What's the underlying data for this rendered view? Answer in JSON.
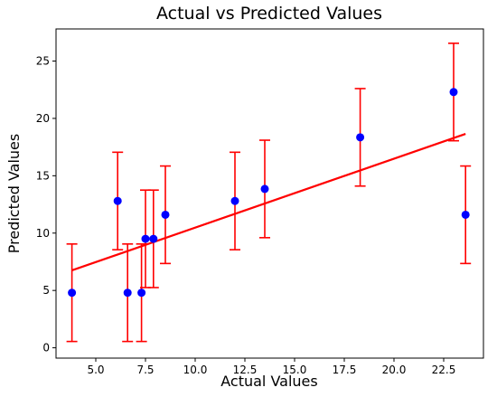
{
  "chart_data": {
    "type": "scatter",
    "title": "Actual vs Predicted Values",
    "xlabel": "Actual Values",
    "ylabel": "Predicted Values",
    "xlim": [
      3.0,
      24.5
    ],
    "ylim": [
      -0.9,
      27.8
    ],
    "x_ticks": [
      5.0,
      7.5,
      10.0,
      12.5,
      15.0,
      17.5,
      20.0,
      22.5
    ],
    "x_tick_labels": [
      "5.0",
      "7.5",
      "10.0",
      "12.5",
      "15.0",
      "17.5",
      "20.0",
      "22.5"
    ],
    "y_ticks": [
      0,
      5,
      10,
      15,
      20,
      25
    ],
    "y_tick_labels": [
      "0",
      "5",
      "10",
      "15",
      "20",
      "25"
    ],
    "grid": false,
    "colors": {
      "points": "#0000ff",
      "errorbars": "#ff0000",
      "fit_line": "#ff0000"
    },
    "points": [
      {
        "x": 3.8,
        "y": 4.8,
        "err": 4.25
      },
      {
        "x": 6.1,
        "y": 12.8,
        "err": 4.25
      },
      {
        "x": 6.6,
        "y": 4.8,
        "err": 4.25
      },
      {
        "x": 7.3,
        "y": 4.8,
        "err": 4.25
      },
      {
        "x": 7.5,
        "y": 9.5,
        "err": 4.25
      },
      {
        "x": 7.9,
        "y": 9.5,
        "err": 4.25
      },
      {
        "x": 8.5,
        "y": 11.6,
        "err": 4.25
      },
      {
        "x": 12.0,
        "y": 12.8,
        "err": 4.25
      },
      {
        "x": 13.5,
        "y": 13.85,
        "err": 4.25
      },
      {
        "x": 18.3,
        "y": 18.35,
        "err": 4.25
      },
      {
        "x": 23.0,
        "y": 22.3,
        "err": 4.25
      },
      {
        "x": 23.6,
        "y": 11.6,
        "err": 4.25
      }
    ],
    "fit_line": {
      "x": [
        3.8,
        23.6
      ],
      "y": [
        6.75,
        18.65
      ]
    }
  }
}
